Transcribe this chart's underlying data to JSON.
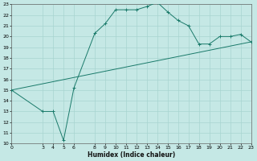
{
  "xlabel": "Humidex (Indice chaleur)",
  "bg_color": "#c5e8e5",
  "grid_color": "#a8d4d0",
  "line_color": "#1a7a6a",
  "xlim": [
    0,
    23
  ],
  "ylim": [
    10,
    23
  ],
  "xticks": [
    0,
    3,
    4,
    5,
    6,
    8,
    9,
    10,
    11,
    12,
    13,
    14,
    15,
    16,
    17,
    18,
    19,
    20,
    21,
    22,
    23
  ],
  "yticks": [
    10,
    11,
    12,
    13,
    14,
    15,
    16,
    17,
    18,
    19,
    20,
    21,
    22,
    23
  ],
  "line1_x": [
    0,
    3,
    4,
    5,
    6,
    8,
    9,
    10,
    11,
    12,
    13,
    14,
    15,
    16,
    17,
    18,
    19,
    20,
    21,
    22,
    23
  ],
  "line1_y": [
    15,
    13,
    13,
    10.3,
    15.2,
    20.3,
    21.2,
    22.5,
    22.5,
    22.5,
    22.8,
    23.2,
    22.3,
    21.5,
    21.0,
    19.3,
    19.3,
    20.0,
    20.0,
    20.2,
    19.5
  ],
  "line2_x": [
    0,
    23
  ],
  "line2_y": [
    15,
    19.5
  ],
  "tick_fontsize": 4.5,
  "xlabel_fontsize": 5.5
}
